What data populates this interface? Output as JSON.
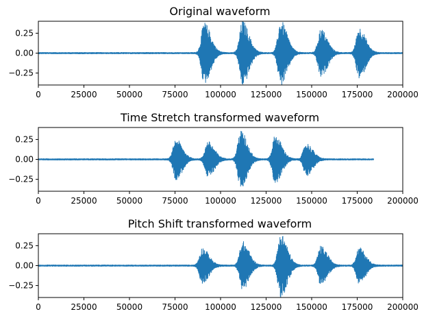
{
  "figure": {
    "background": "#ffffff",
    "line_color": "#1f77b4"
  },
  "chart_data": [
    {
      "type": "line",
      "title": "Original waveform",
      "xlabel": "",
      "ylabel": "",
      "xlim": [
        0,
        200000
      ],
      "ylim": [
        -0.4,
        0.4
      ],
      "xticks": [
        0,
        25000,
        50000,
        75000,
        100000,
        125000,
        150000,
        175000,
        200000
      ],
      "xtick_labels": [
        "0",
        "25000",
        "50000",
        "75000",
        "100000",
        "125000",
        "150000",
        "175000",
        "200000"
      ],
      "yticks": [
        0.25,
        0.0,
        -0.25
      ],
      "ytick_labels": [
        "0.25",
        "0.00",
        "−0.25"
      ],
      "signal_end": 200000,
      "noise_amplitude": 0.012,
      "bursts": [
        {
          "center": 91000,
          "amplitude": 0.38
        },
        {
          "center": 112000,
          "amplitude": 0.4
        },
        {
          "center": 133000,
          "amplitude": 0.4
        },
        {
          "center": 155000,
          "amplitude": 0.3
        },
        {
          "center": 176000,
          "amplitude": 0.32
        }
      ]
    },
    {
      "type": "line",
      "title": "Time Stretch transformed waveform",
      "xlabel": "",
      "ylabel": "",
      "xlim": [
        0,
        200000
      ],
      "ylim": [
        -0.4,
        0.4
      ],
      "xticks": [
        0,
        25000,
        50000,
        75000,
        100000,
        125000,
        150000,
        175000,
        200000
      ],
      "xtick_labels": [
        "0",
        "25000",
        "50000",
        "75000",
        "100000",
        "125000",
        "150000",
        "175000",
        "200000"
      ],
      "yticks": [
        0.25,
        0.0,
        -0.25
      ],
      "ytick_labels": [
        "0.25",
        "0.00",
        "−0.25"
      ],
      "signal_end": 184000,
      "noise_amplitude": 0.012,
      "bursts": [
        {
          "center": 75500,
          "amplitude": 0.25
        },
        {
          "center": 93000,
          "amplitude": 0.22
        },
        {
          "center": 111000,
          "amplitude": 0.36
        },
        {
          "center": 130000,
          "amplitude": 0.3
        },
        {
          "center": 147000,
          "amplitude": 0.2
        }
      ]
    },
    {
      "type": "line",
      "title": "Pitch Shift transformed waveform",
      "xlabel": "",
      "ylabel": "",
      "xlim": [
        0,
        200000
      ],
      "ylim": [
        -0.4,
        0.4
      ],
      "xticks": [
        0,
        25000,
        50000,
        75000,
        100000,
        125000,
        150000,
        175000,
        200000
      ],
      "xtick_labels": [
        "0",
        "25000",
        "50000",
        "75000",
        "100000",
        "125000",
        "150000",
        "175000",
        "200000"
      ],
      "yticks": [
        0.25,
        0.0,
        -0.25
      ],
      "ytick_labels": [
        "0.25",
        "0.00",
        "−0.25"
      ],
      "signal_end": 200000,
      "noise_amplitude": 0.012,
      "bursts": [
        {
          "center": 90000,
          "amplitude": 0.22
        },
        {
          "center": 112000,
          "amplitude": 0.3
        },
        {
          "center": 133000,
          "amplitude": 0.4
        },
        {
          "center": 155000,
          "amplitude": 0.24
        },
        {
          "center": 176000,
          "amplitude": 0.22
        }
      ]
    }
  ]
}
